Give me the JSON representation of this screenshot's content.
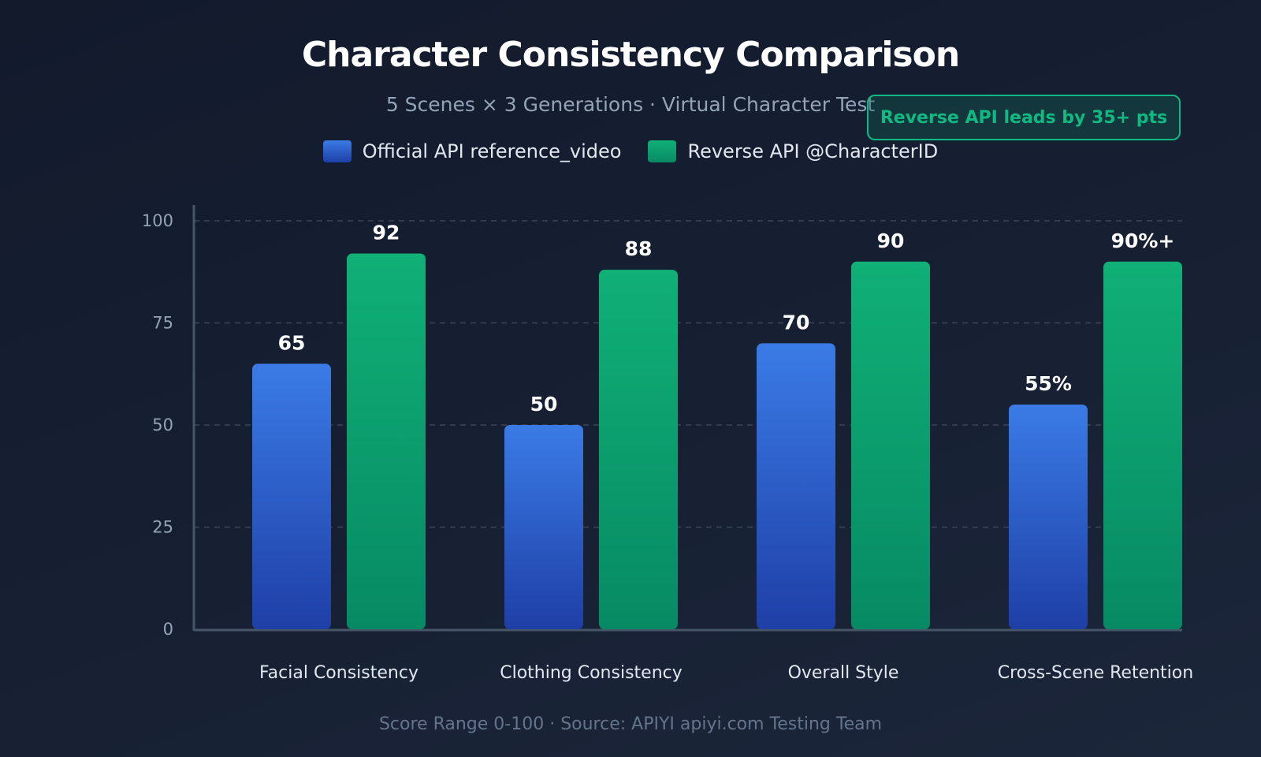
{
  "chart_data": {
    "type": "bar",
    "title": "Character Consistency Comparison",
    "subtitle": "5 Scenes × 3 Generations · Virtual Character Test",
    "categories": [
      "Facial Consistency",
      "Clothing Consistency",
      "Overall Style",
      "Cross-Scene Retention"
    ],
    "series": [
      {
        "name": "Official API reference_video",
        "values": [
          65,
          50,
          70,
          55
        ],
        "labels": [
          "65",
          "50",
          "70",
          "55%"
        ],
        "color": "#3b7be6",
        "color_bottom": "#1e3fa6"
      },
      {
        "name": "Reverse API @CharacterID",
        "values": [
          92,
          88,
          90,
          90
        ],
        "labels": [
          "92",
          "88",
          "90",
          "90%+"
        ],
        "color": "#10b077",
        "color_bottom": "#078a63"
      }
    ],
    "ylim": [
      0,
      100
    ],
    "yticks": [
      "0",
      "25",
      "50",
      "75",
      "100"
    ],
    "xlabel": "",
    "ylabel": "",
    "grid": true,
    "legend": "top-center",
    "annotation": "Reverse API leads by 35+ pts",
    "footer": "Score Range 0-100 · Source: APIYI apiyi.com Testing Team"
  }
}
